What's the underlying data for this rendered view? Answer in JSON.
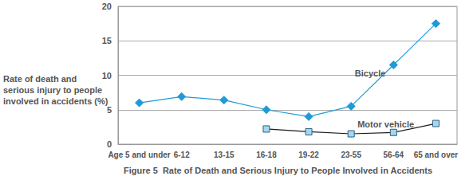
{
  "chart_data": {
    "type": "line",
    "title": "Figure 5  Rate of Death and Serious Injury to People Involved in Accidents",
    "ylabel": "Rate of death and serious injury to people involved in accidents (%)",
    "categories": [
      "Age 5 and under",
      "6-12",
      "13-15",
      "16-18",
      "19-22",
      "23-55",
      "56-64",
      "65 and over"
    ],
    "series": [
      {
        "name": "Bicycle",
        "color": "#1e9bd7",
        "marker": "diamond",
        "values": [
          6,
          6.9,
          6.4,
          5,
          4,
          5.5,
          11.5,
          17.5
        ]
      },
      {
        "name": "Motor vehicle",
        "color": "#1a1a1a",
        "marker": "square",
        "values": [
          null,
          null,
          null,
          2.2,
          1.8,
          1.5,
          1.7,
          3
        ]
      }
    ],
    "ylim": [
      0,
      20
    ],
    "yticks": [
      0,
      5,
      10,
      15,
      20
    ],
    "grid": true
  }
}
